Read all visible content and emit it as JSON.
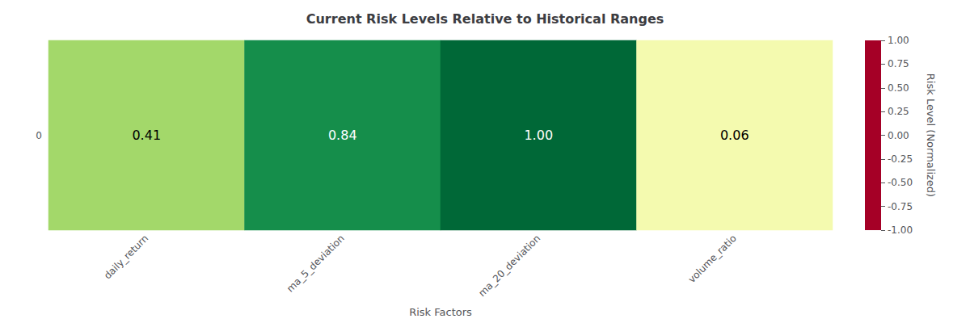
{
  "chart_data": {
    "type": "heatmap",
    "title": "Current Risk Levels Relative to Historical Ranges",
    "xlabel": "Risk Factors",
    "categories": [
      "daily_return",
      "ma_5_deviation",
      "ma_20_deviation",
      "volume_ratio"
    ],
    "row_labels": [
      "0"
    ],
    "values": [
      [
        0.41,
        0.84,
        1.0,
        0.06
      ]
    ],
    "value_labels": [
      [
        "0.41",
        "0.84",
        "1.00",
        "0.06"
      ]
    ],
    "data_labels": true,
    "colorbar_label": "Risk Level (Normalized)",
    "colorbar_range": [
      -1.0,
      1.0
    ],
    "colorbar_ticks": [
      {
        "value": 1.0,
        "label": "1.00"
      },
      {
        "value": 0.75,
        "label": "0.75"
      },
      {
        "value": 0.5,
        "label": "0.50"
      },
      {
        "value": 0.25,
        "label": "0.25"
      },
      {
        "value": 0.0,
        "label": "0.00"
      },
      {
        "value": -0.25,
        "label": "-0.25"
      },
      {
        "value": -0.5,
        "label": "-0.50"
      },
      {
        "value": -0.75,
        "label": "-0.75"
      },
      {
        "value": -1.0,
        "label": "-1.00"
      }
    ]
  }
}
